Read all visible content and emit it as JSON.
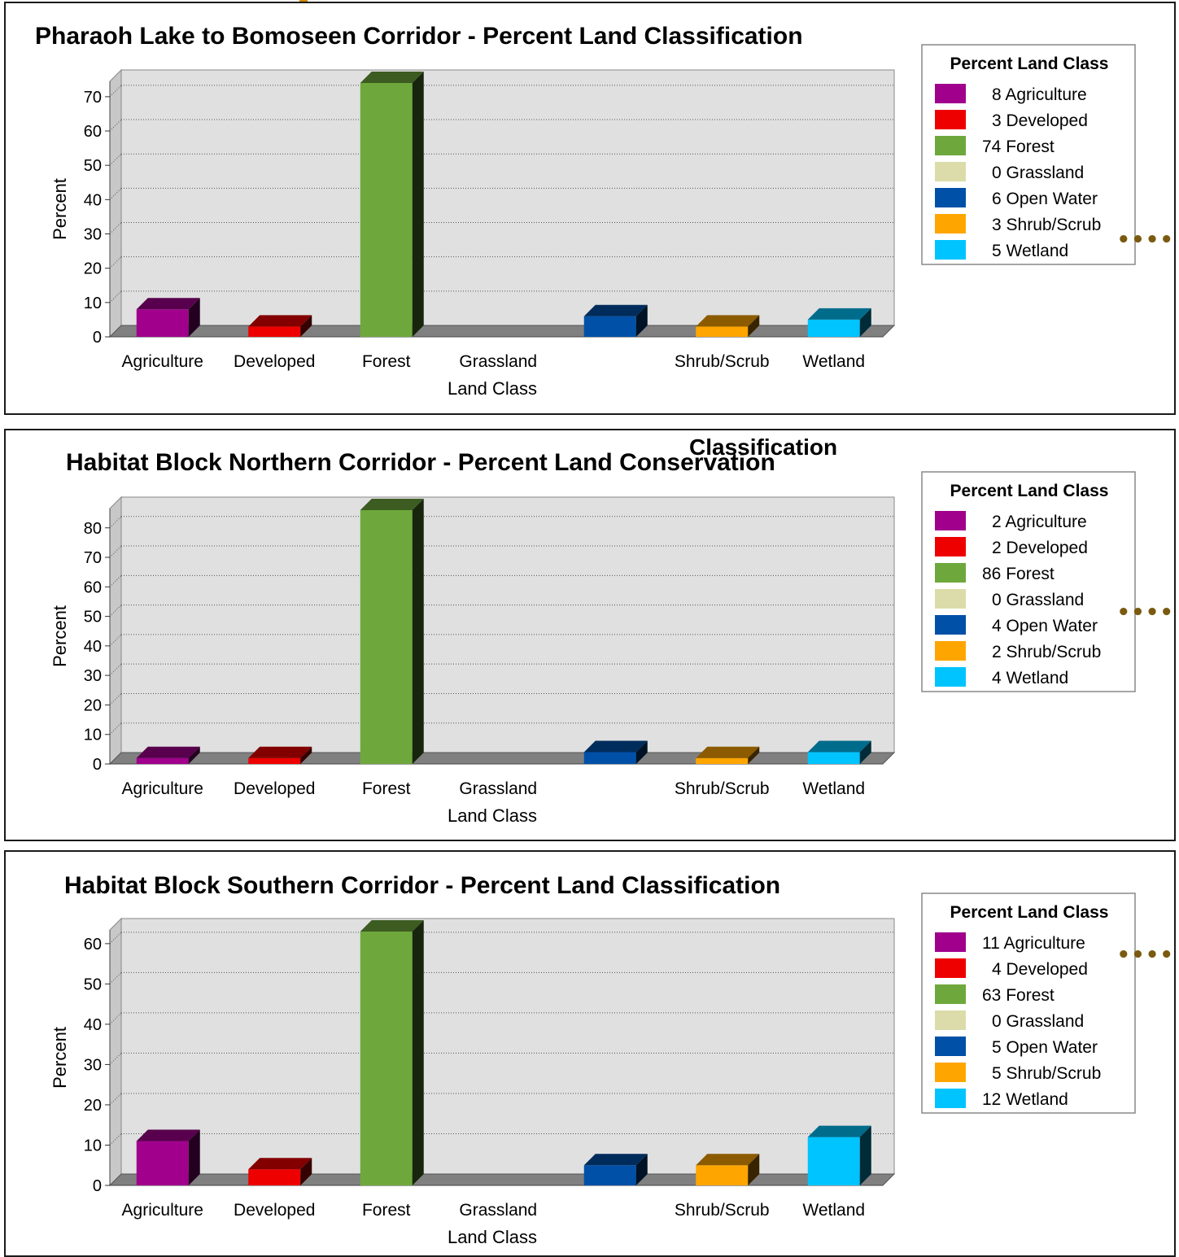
{
  "page": {
    "connector_glyph": "••••"
  },
  "chart_data": [
    {
      "type": "bar",
      "title": "Pharaoh Lake to Bomoseen Corridor - Percent Land Classification",
      "title_extra": "",
      "xlabel": "Land Class",
      "ylabel": "Percent",
      "ylim": [
        0,
        74
      ],
      "yticks": [
        0,
        10,
        20,
        30,
        40,
        50,
        60,
        70
      ],
      "grid": true,
      "legend_position": "right",
      "legend_title": "Percent Land Class",
      "categories": [
        "Agriculture",
        "Developed",
        "Forest",
        "Grassland",
        "",
        "Shrub/Scrub",
        "Wetland"
      ],
      "series_names": [
        "Agriculture",
        "Developed",
        "Forest",
        "Grassland",
        "Open Water",
        "Shrub/Scrub",
        "Wetland"
      ],
      "values": [
        8,
        3,
        74,
        0,
        6,
        3,
        5
      ],
      "legend_entries": [
        "8 Agriculture",
        "3 Developed",
        "74 Forest",
        "0 Grassland",
        "6 Open Water",
        "3 Shrub/Scrub",
        "5 Wetland"
      ]
    },
    {
      "type": "bar",
      "title": "Habitat Block Northern Corridor - Percent Land Conservation",
      "title_extra": "Classification",
      "xlabel": "Land Class",
      "ylabel": "Percent",
      "ylim": [
        0,
        86
      ],
      "yticks": [
        0,
        10,
        20,
        30,
        40,
        50,
        60,
        70,
        80
      ],
      "grid": true,
      "legend_position": "right",
      "legend_title": "Percent Land Class",
      "categories": [
        "Agriculture",
        "Developed",
        "Forest",
        "Grassland",
        "",
        "Shrub/Scrub",
        "Wetland"
      ],
      "series_names": [
        "Agriculture",
        "Developed",
        "Forest",
        "Grassland",
        "Open Water",
        "Shrub/Scrub",
        "Wetland"
      ],
      "values": [
        2,
        2,
        86,
        0,
        4,
        2,
        4
      ],
      "legend_entries": [
        "2 Agriculture",
        "2 Developed",
        "86 Forest",
        "0 Grassland",
        "4 Open Water",
        "2 Shrub/Scrub",
        "4 Wetland"
      ]
    },
    {
      "type": "bar",
      "title": "Habitat Block Southern Corridor - Percent Land Classification",
      "title_extra": "",
      "xlabel": "Land Class",
      "ylabel": "Percent",
      "ylim": [
        0,
        63
      ],
      "yticks": [
        0,
        10,
        20,
        30,
        40,
        50,
        60
      ],
      "grid": true,
      "legend_position": "right",
      "legend_title": "Percent Land Class",
      "categories": [
        "Agriculture",
        "Developed",
        "Forest",
        "Grassland",
        "",
        "Shrub/Scrub",
        "Wetland"
      ],
      "series_names": [
        "Agriculture",
        "Developed",
        "Forest",
        "Grassland",
        "Open Water",
        "Shrub/Scrub",
        "Wetland"
      ],
      "values": [
        11,
        4,
        63,
        0,
        5,
        5,
        12
      ],
      "legend_entries": [
        "11 Agriculture",
        "4 Developed",
        "63 Forest",
        "0 Grassland",
        "5 Open Water",
        "5 Shrub/Scrub",
        "12 Wetland"
      ]
    }
  ],
  "colors": {
    "agriculture": "#a0008c",
    "developed": "#ee0000",
    "forest": "#6ea83c",
    "grassland": "#dcdcaa",
    "open_water": "#0050a8",
    "shrub_scrub": "#ffa500",
    "wetland": "#00c4ff",
    "plot_background": "#e0e0e0",
    "floor": "#808080"
  }
}
